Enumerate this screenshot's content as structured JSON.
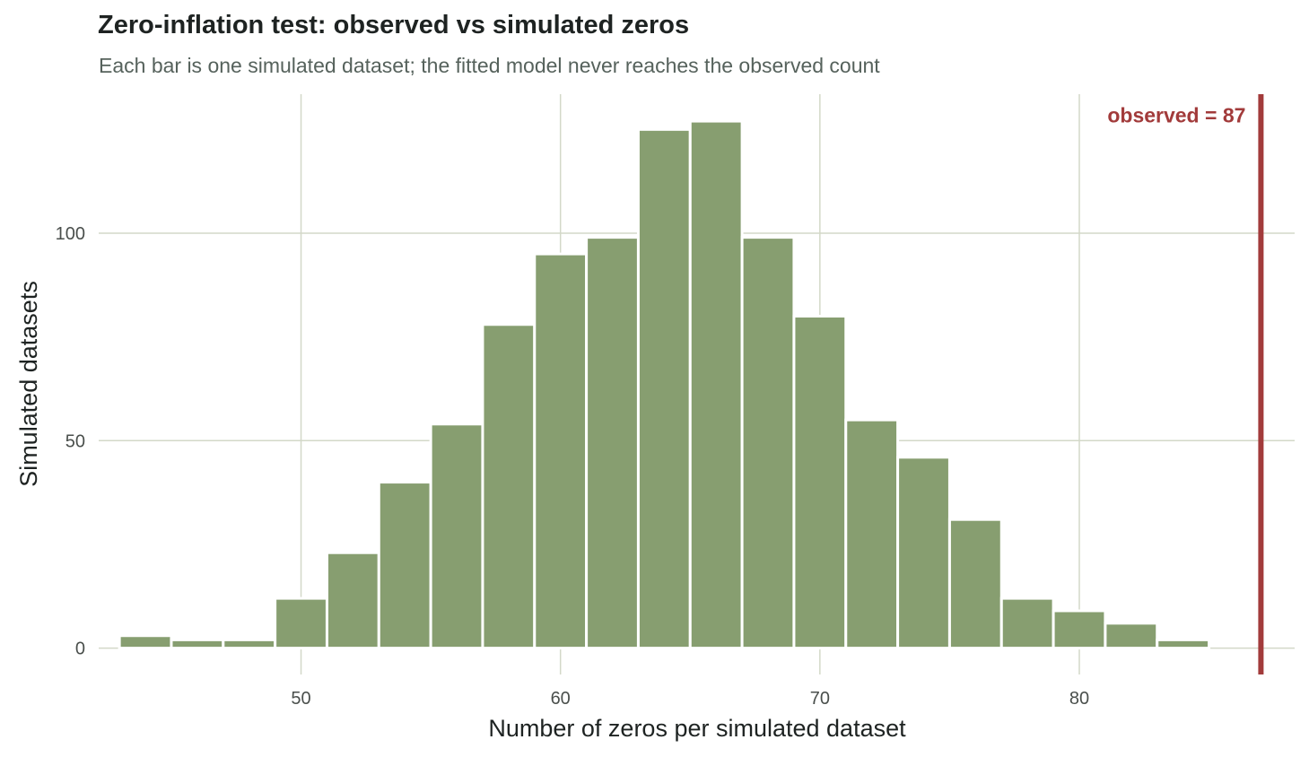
{
  "chart_data": {
    "type": "bar",
    "title": "Zero-inflation test: observed vs simulated zeros",
    "subtitle": "Each bar is one simulated dataset; the fitted model never reaches the observed count",
    "xlabel": "Number of zeros per simulated dataset",
    "ylabel": "Simulated datasets",
    "bin_width": 2,
    "bins": [
      {
        "x0": 43,
        "x1": 45,
        "count": 3
      },
      {
        "x0": 45,
        "x1": 47,
        "count": 2
      },
      {
        "x0": 47,
        "x1": 49,
        "count": 2
      },
      {
        "x0": 49,
        "x1": 51,
        "count": 12
      },
      {
        "x0": 51,
        "x1": 53,
        "count": 23
      },
      {
        "x0": 53,
        "x1": 55,
        "count": 40
      },
      {
        "x0": 55,
        "x1": 57,
        "count": 54
      },
      {
        "x0": 57,
        "x1": 59,
        "count": 78
      },
      {
        "x0": 59,
        "x1": 61,
        "count": 95
      },
      {
        "x0": 61,
        "x1": 63,
        "count": 99
      },
      {
        "x0": 63,
        "x1": 65,
        "count": 125
      },
      {
        "x0": 65,
        "x1": 67,
        "count": 127
      },
      {
        "x0": 67,
        "x1": 69,
        "count": 99
      },
      {
        "x0": 69,
        "x1": 71,
        "count": 80
      },
      {
        "x0": 71,
        "x1": 73,
        "count": 55
      },
      {
        "x0": 73,
        "x1": 75,
        "count": 46
      },
      {
        "x0": 75,
        "x1": 77,
        "count": 31
      },
      {
        "x0": 77,
        "x1": 79,
        "count": 12
      },
      {
        "x0": 79,
        "x1": 81,
        "count": 9
      },
      {
        "x0": 81,
        "x1": 83,
        "count": 6
      },
      {
        "x0": 83,
        "x1": 85,
        "count": 2
      }
    ],
    "xlim": [
      42.2,
      88.3
    ],
    "ylim": [
      -6.35,
      133.5
    ],
    "xticks": [
      50,
      60,
      70,
      80
    ],
    "yticks": [
      0,
      50,
      100
    ],
    "observed": {
      "value": 87,
      "label": "observed = 87"
    },
    "grid": true,
    "legend": "none",
    "colors": {
      "bar": "#879e70",
      "bar_outline": "#ffffff",
      "observed_line": "#a23b3b",
      "grid": "#d3d8c8"
    }
  }
}
